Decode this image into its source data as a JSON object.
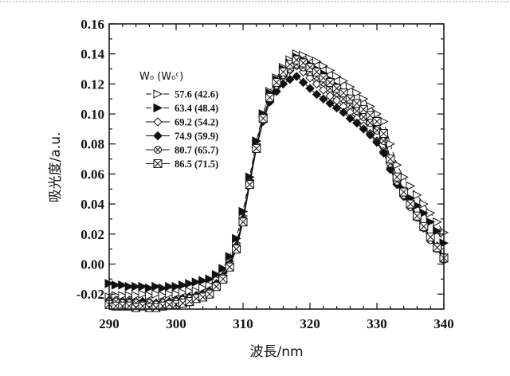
{
  "chart_data": {
    "type": "line",
    "xlabel": "波長/nm",
    "ylabel": "吸光度/a.u.",
    "xlim": [
      290,
      340
    ],
    "ylim": [
      -0.03,
      0.16
    ],
    "x_ticks": [
      290,
      300,
      310,
      320,
      330,
      340
    ],
    "y_ticks": [
      "-0.02",
      "0.00",
      "0.02",
      "0.04",
      "0.06",
      "0.08",
      "0.10",
      "0.12",
      "0.14",
      "0.16"
    ],
    "grid": false,
    "legend_position": "top-left",
    "legend_title": "W₀ (W₀ᶜ)",
    "x": [
      290,
      291,
      292,
      293,
      294,
      295,
      296,
      297,
      298,
      299,
      300,
      301,
      302,
      303,
      304,
      305,
      306,
      307,
      308,
      309,
      310,
      311,
      312,
      313,
      314,
      315,
      316,
      317,
      318,
      319,
      320,
      321,
      322,
      323,
      324,
      325,
      326,
      327,
      328,
      329,
      330,
      331,
      332,
      333,
      334,
      335,
      336,
      337,
      338,
      339,
      340
    ],
    "series": [
      {
        "name": "57.6 (42.6)",
        "marker": "triangle-right-open",
        "dash": "7,4",
        "values": [
          -0.022,
          -0.021,
          -0.021,
          -0.021,
          -0.021,
          -0.02,
          -0.021,
          -0.02,
          -0.021,
          -0.02,
          -0.02,
          -0.019,
          -0.018,
          -0.018,
          -0.016,
          -0.014,
          -0.01,
          -0.006,
          0.002,
          0.014,
          0.032,
          0.056,
          0.08,
          0.1,
          0.115,
          0.124,
          0.131,
          0.136,
          0.14,
          0.139,
          0.137,
          0.135,
          0.132,
          0.129,
          0.125,
          0.122,
          0.118,
          0.114,
          0.11,
          0.105,
          0.1,
          0.095,
          0.08,
          0.066,
          0.058,
          0.052,
          0.046,
          0.04,
          0.034,
          0.028,
          0.021
        ]
      },
      {
        "name": "63.4 (48.4)",
        "marker": "triangle-right-filled",
        "dash": "7,4",
        "values": [
          -0.013,
          -0.014,
          -0.014,
          -0.015,
          -0.015,
          -0.015,
          -0.016,
          -0.015,
          -0.016,
          -0.015,
          -0.015,
          -0.014,
          -0.013,
          -0.012,
          -0.011,
          -0.01,
          -0.007,
          -0.003,
          0.005,
          0.017,
          0.035,
          0.058,
          0.082,
          0.1,
          0.114,
          0.123,
          0.13,
          0.134,
          0.138,
          0.136,
          0.133,
          0.13,
          0.127,
          0.123,
          0.119,
          0.115,
          0.111,
          0.106,
          0.101,
          0.096,
          0.09,
          0.084,
          0.07,
          0.058,
          0.05,
          0.044,
          0.039,
          0.034,
          0.028,
          0.022,
          0.014
        ]
      },
      {
        "name": "69.2 (54.2)",
        "marker": "diamond-open",
        "dash": "",
        "values": [
          -0.024,
          -0.024,
          -0.025,
          -0.024,
          -0.025,
          -0.025,
          -0.025,
          -0.026,
          -0.025,
          -0.025,
          -0.024,
          -0.023,
          -0.022,
          -0.021,
          -0.02,
          -0.018,
          -0.013,
          -0.008,
          0.0,
          0.012,
          0.03,
          0.055,
          0.078,
          0.097,
          0.111,
          0.119,
          0.125,
          0.129,
          0.132,
          0.128,
          0.124,
          0.12,
          0.116,
          0.112,
          0.109,
          0.105,
          0.101,
          0.097,
          0.092,
          0.087,
          0.082,
          0.075,
          0.064,
          0.054,
          0.046,
          0.039,
          0.032,
          0.025,
          0.018,
          0.012,
          0.005
        ]
      },
      {
        "name": "74.9 (59.9)",
        "marker": "diamond-filled",
        "dash": "",
        "values": [
          -0.024,
          -0.025,
          -0.025,
          -0.025,
          -0.026,
          -0.025,
          -0.026,
          -0.026,
          -0.026,
          -0.025,
          -0.024,
          -0.023,
          -0.022,
          -0.021,
          -0.02,
          -0.018,
          -0.013,
          -0.008,
          0.0,
          0.012,
          0.03,
          0.054,
          0.077,
          0.095,
          0.108,
          0.115,
          0.12,
          0.123,
          0.125,
          0.121,
          0.117,
          0.113,
          0.11,
          0.107,
          0.104,
          0.101,
          0.097,
          0.094,
          0.09,
          0.086,
          0.081,
          0.074,
          0.063,
          0.053,
          0.045,
          0.038,
          0.031,
          0.024,
          0.017,
          0.011,
          0.004
        ]
      },
      {
        "name": "80.7 (65.7)",
        "marker": "circle-x",
        "dash": "",
        "values": [
          -0.025,
          -0.025,
          -0.026,
          -0.026,
          -0.026,
          -0.027,
          -0.026,
          -0.027,
          -0.026,
          -0.026,
          -0.025,
          -0.024,
          -0.023,
          -0.022,
          -0.021,
          -0.019,
          -0.014,
          -0.009,
          -0.001,
          0.011,
          0.029,
          0.054,
          0.077,
          0.096,
          0.11,
          0.119,
          0.126,
          0.13,
          0.133,
          0.131,
          0.128,
          0.125,
          0.121,
          0.117,
          0.114,
          0.11,
          0.106,
          0.102,
          0.098,
          0.094,
          0.089,
          0.082,
          0.067,
          0.055,
          0.046,
          0.038,
          0.031,
          0.024,
          0.016,
          0.01,
          0.003
        ]
      },
      {
        "name": "86.5 (71.5)",
        "marker": "square-x",
        "dash": "",
        "values": [
          -0.027,
          -0.028,
          -0.028,
          -0.028,
          -0.029,
          -0.028,
          -0.029,
          -0.029,
          -0.028,
          -0.027,
          -0.027,
          -0.026,
          -0.025,
          -0.023,
          -0.022,
          -0.02,
          -0.015,
          -0.01,
          -0.002,
          0.01,
          0.028,
          0.053,
          0.077,
          0.097,
          0.111,
          0.121,
          0.128,
          0.133,
          0.136,
          0.134,
          0.131,
          0.128,
          0.124,
          0.121,
          0.117,
          0.114,
          0.11,
          0.107,
          0.103,
          0.099,
          0.095,
          0.087,
          0.07,
          0.058,
          0.048,
          0.04,
          0.032,
          0.025,
          0.018,
          0.011,
          0.004
        ]
      }
    ]
  }
}
